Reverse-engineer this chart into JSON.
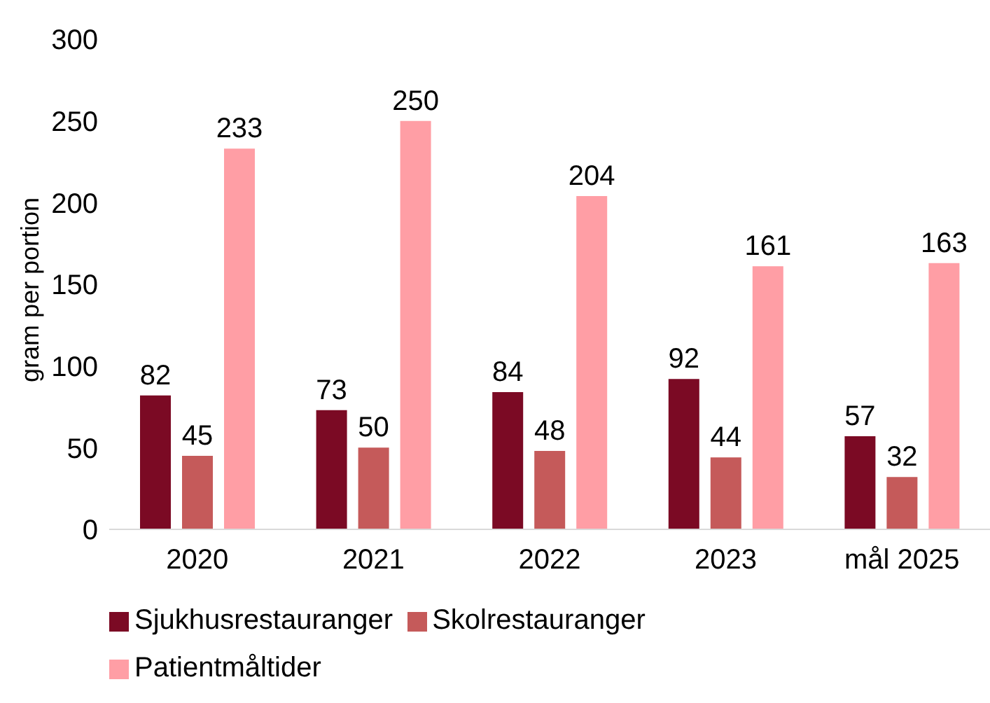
{
  "chart_data": {
    "type": "bar",
    "ylabel": "gram per portion",
    "categories": [
      "2020",
      "2021",
      "2022",
      "2023",
      "mål 2025"
    ],
    "series": [
      {
        "name": "Sjukhusrestauranger",
        "color": "#7b0a24",
        "values": [
          82,
          73,
          84,
          92,
          57
        ]
      },
      {
        "name": "Skolrestauranger",
        "color": "#c55a5a",
        "values": [
          45,
          50,
          48,
          44,
          32
        ]
      },
      {
        "name": "Patientmåltider",
        "color": "#ff9ea5",
        "values": [
          233,
          250,
          204,
          161,
          163
        ]
      }
    ],
    "ylim": [
      0,
      300
    ],
    "yticks": [
      0,
      50,
      100,
      150,
      200,
      250,
      300
    ],
    "grid": false,
    "legend": "bottom",
    "data_labels": true
  }
}
